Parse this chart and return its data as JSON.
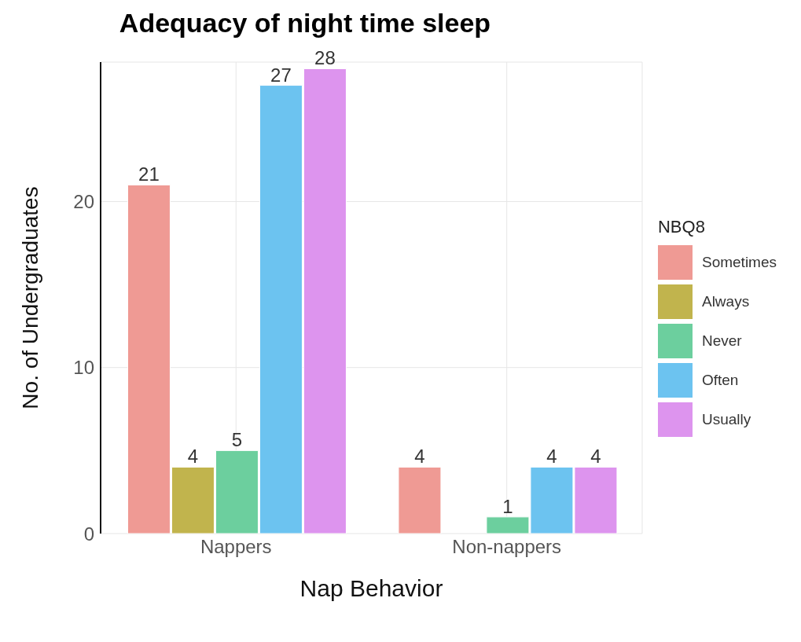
{
  "chart_data": {
    "type": "bar",
    "title": "Adequacy of night time sleep",
    "xlabel": "Nap Behavior",
    "ylabel": "No. of Undergraduates",
    "legend_title": "NBQ8",
    "categories": [
      "Nappers",
      "Non-nappers"
    ],
    "series": [
      {
        "name": "Sometimes",
        "color": "#ef9a94",
        "values": [
          21,
          4
        ]
      },
      {
        "name": "Always",
        "color": "#c1b44d",
        "values": [
          4,
          null
        ]
      },
      {
        "name": "Never",
        "color": "#6ccf9e",
        "values": [
          5,
          1
        ]
      },
      {
        "name": "Often",
        "color": "#6cc3f0",
        "values": [
          27,
          4
        ]
      },
      {
        "name": "Usually",
        "color": "#dd94ee",
        "values": [
          28,
          4
        ]
      }
    ],
    "ylim": [
      0,
      28.4
    ],
    "yticks": [
      0,
      10,
      20
    ],
    "grid": true,
    "legend": "right",
    "data_labels": true
  }
}
